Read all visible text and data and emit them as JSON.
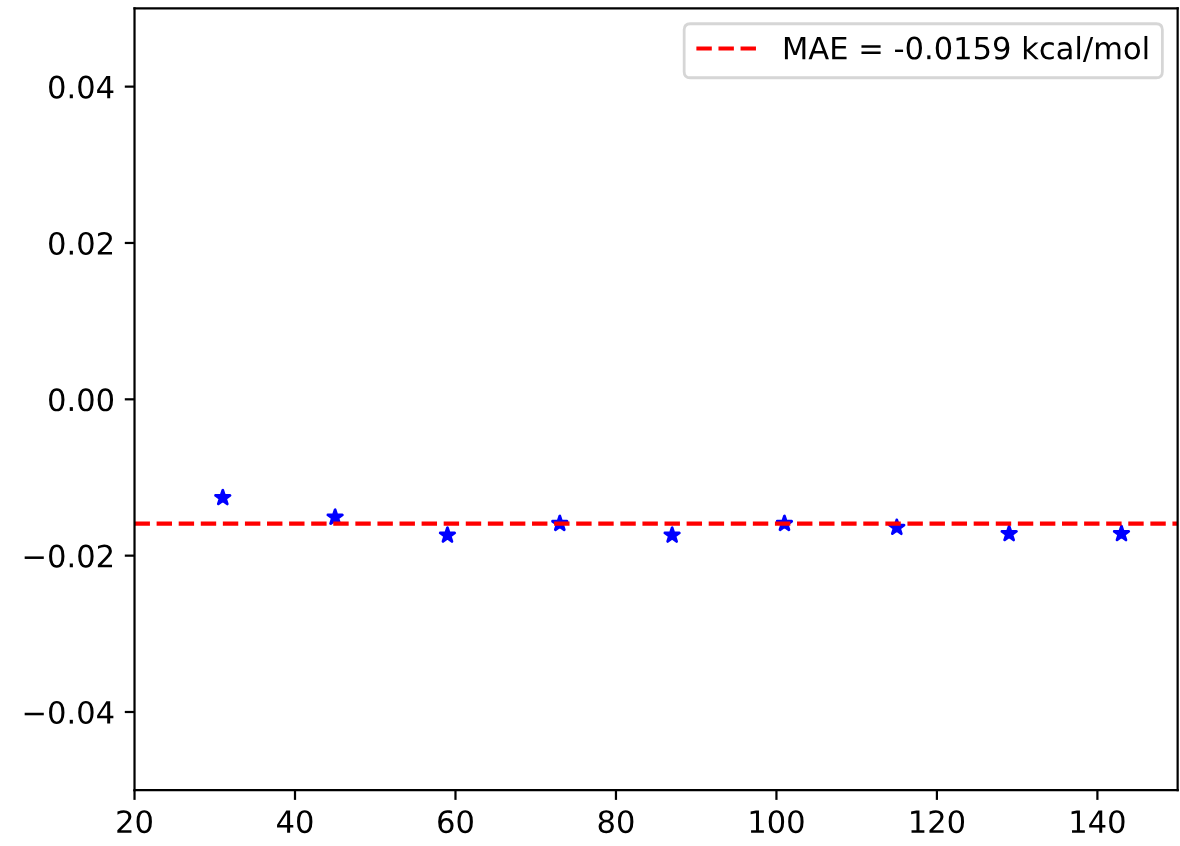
{
  "chart_data": {
    "type": "scatter",
    "x": [
      31,
      45,
      59,
      73,
      87,
      101,
      115,
      129,
      143
    ],
    "series": [
      {
        "color": "#0000ff",
        "values": [
          -0.0126,
          -0.0151,
          -0.0174,
          -0.0159,
          -0.0174,
          -0.0159,
          -0.0164,
          -0.0172,
          -0.0172
        ]
      }
    ],
    "marker": "star",
    "xlim": [
      20,
      150
    ],
    "xticks": [
      20,
      40,
      60,
      80,
      100,
      120,
      140
    ],
    "ylim": [
      -0.05,
      0.05
    ],
    "yticks": [
      {
        "value": -0.04,
        "label": "−0.04"
      },
      {
        "value": -0.02,
        "label": "−0.02"
      },
      {
        "value": 0.0,
        "label": "0.00"
      },
      {
        "value": 0.02,
        "label": "0.02"
      },
      {
        "value": 0.04,
        "label": "0.04"
      }
    ],
    "ref_lines": [
      {
        "axis": "y",
        "value": -0.0159,
        "label": "MAE = -0.0159 kcal/mol",
        "color": "#ff0000",
        "line_style": "dashed"
      }
    ],
    "legend": "top right",
    "grid": false
  }
}
